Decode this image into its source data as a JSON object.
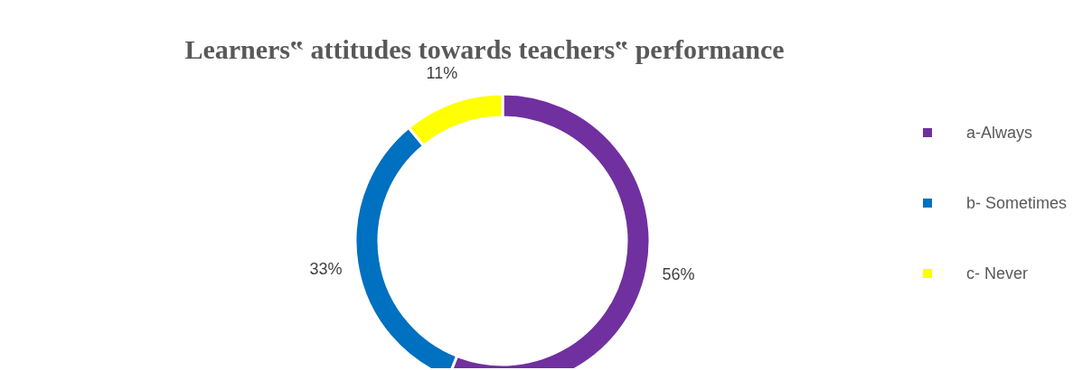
{
  "chart_data": {
    "type": "donut",
    "title": "Learners‟ attitudes towards teachers‟ performance",
    "categories": [
      "a-Always",
      "b- Sometimes",
      "c- Never"
    ],
    "values": [
      56,
      33,
      11
    ],
    "colors": [
      "#7030a0",
      "#0070c0",
      "#ffff00"
    ],
    "value_labels": [
      "56%",
      "33%",
      "11%"
    ],
    "legend": "right"
  }
}
